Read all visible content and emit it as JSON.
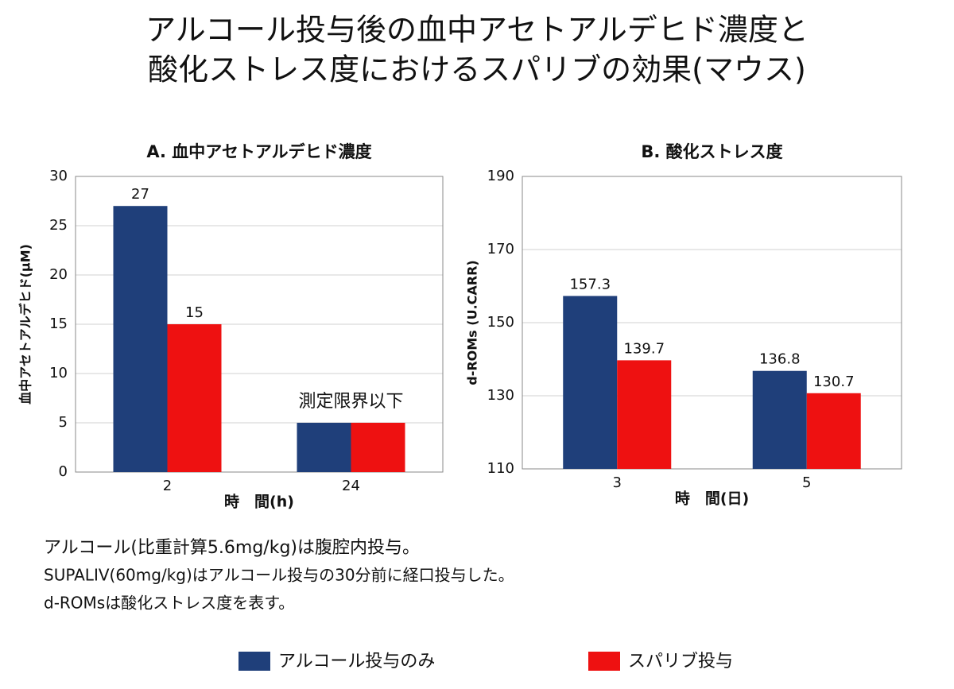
{
  "title": [
    "アルコール投与後の血中アセトアルデヒド濃度と",
    "酸化ストレス度におけるスパリブの効果(マウス)"
  ],
  "chart_data": [
    {
      "type": "bar",
      "title": "A. 血中アセトアルデヒド濃度",
      "x_label": "時　間(h)",
      "y_label": "血中アセトアルデヒド(μM)",
      "categories": [
        "2",
        "24"
      ],
      "series": [
        {
          "name": "アルコール投与のみ",
          "color": "#1f3f7a",
          "values": [
            27,
            5
          ],
          "value_labels": [
            "27",
            null
          ]
        },
        {
          "name": "スパリブ投与",
          "color": "#ee1111",
          "values": [
            15,
            5
          ],
          "value_labels": [
            "15",
            null
          ]
        }
      ],
      "ylim": [
        0,
        30
      ],
      "yticks": [
        0,
        5,
        10,
        15,
        20,
        25,
        30
      ],
      "grid": true,
      "annotation": "測定限界以下"
    },
    {
      "type": "bar",
      "title": "B. 酸化ストレス度",
      "x_label": "時　間(日)",
      "y_label": "d-ROMs (U.CARR)",
      "categories": [
        "3",
        "5"
      ],
      "series": [
        {
          "name": "アルコール投与のみ",
          "color": "#1f3f7a",
          "values": [
            157.3,
            136.8
          ]
        },
        {
          "name": "スパリブ投与",
          "color": "#ee1111",
          "values": [
            139.7,
            130.7
          ]
        }
      ],
      "ylim": [
        110,
        190
      ],
      "yticks": [
        110,
        130,
        150,
        170,
        190
      ],
      "grid": true
    }
  ],
  "notes": [
    "アルコール(比重計算5.6mg/kg)は腹腔内投与。",
    "SUPALIV(60mg/kg)はアルコール投与の30分前に経口投与した。",
    "d-ROMsは酸化ストレス度を表す。"
  ]
}
